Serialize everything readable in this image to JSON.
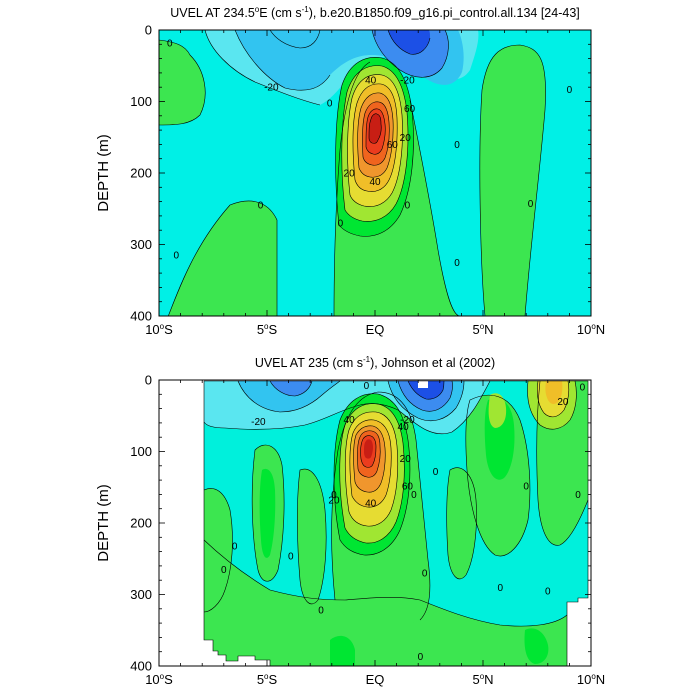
{
  "colors": {
    "c_neg40": "#1c50e6",
    "c_neg30": "#3c8cf0",
    "c_neg20": "#32c4f0",
    "c_neg10": "#5ae6f0",
    "c_0": "#00f0dc",
    "c_pos0": "#3ce650",
    "c_10": "#00e632",
    "c_20": "#a0e632",
    "c_30": "#e6dc32",
    "c_40": "#f0be28",
    "c_50": "#f0962d",
    "c_60": "#f0641e",
    "c_70": "#eb3c1e",
    "c_80": "#c81e14",
    "background_main": "#00f0e6"
  },
  "chart_data": [
    {
      "type": "heatmap",
      "title_main": "UVEL AT 234.5",
      "title_sup": "o",
      "title_mid": "E (cm s",
      "title_exp": "-1",
      "title_tail": "), b.e20.B1850.f09_g16.pi_control.all.134 [24-43]",
      "ylabel": "DEPTH (m)",
      "xlim": [
        -10,
        10
      ],
      "ylim": [
        400,
        0
      ],
      "x_ticks": [
        {
          "value": -10,
          "num": "10",
          "sup": "o",
          "suf": "S"
        },
        {
          "value": -5,
          "num": "5",
          "sup": "o",
          "suf": "S"
        },
        {
          "value": 0,
          "num": "EQ",
          "sup": "",
          "suf": ""
        },
        {
          "value": 5,
          "num": "5",
          "sup": "o",
          "suf": "N"
        },
        {
          "value": 10,
          "num": "10",
          "sup": "o",
          "suf": "N"
        }
      ],
      "y_ticks": [
        0,
        100,
        200,
        300,
        400
      ],
      "contour_interval": 10,
      "contour_labels": [
        {
          "text": "0",
          "lat": -9.5,
          "depth": 18
        },
        {
          "text": "-20",
          "lat": -4.8,
          "depth": 80
        },
        {
          "text": "0",
          "lat": -2.1,
          "depth": 102
        },
        {
          "text": "40",
          "lat": -0.2,
          "depth": 70
        },
        {
          "text": "-20",
          "lat": 1.5,
          "depth": 70
        },
        {
          "text": "60",
          "lat": 1.6,
          "depth": 110
        },
        {
          "text": "20",
          "lat": 1.4,
          "depth": 150
        },
        {
          "text": "60",
          "lat": 0.8,
          "depth": 160
        },
        {
          "text": "20",
          "lat": -1.2,
          "depth": 200
        },
        {
          "text": "40",
          "lat": 0.0,
          "depth": 212
        },
        {
          "text": "0",
          "lat": -1.6,
          "depth": 270
        },
        {
          "text": "0",
          "lat": -5.3,
          "depth": 245
        },
        {
          "text": "0",
          "lat": 1.5,
          "depth": 245
        },
        {
          "text": "0",
          "lat": 3.8,
          "depth": 160
        },
        {
          "text": "0",
          "lat": 3.8,
          "depth": 325
        },
        {
          "text": "0",
          "lat": 7.2,
          "depth": 243
        },
        {
          "text": "0",
          "lat": 9.0,
          "depth": 83
        },
        {
          "text": "0",
          "lat": -9.2,
          "depth": 315
        }
      ]
    },
    {
      "type": "heatmap",
      "title_main": "UVEL AT 235 (cm s",
      "title_exp": "-1",
      "title_tail": "), Johnson et al (2002)",
      "ylabel": "DEPTH (m)",
      "xlim": [
        -10,
        10
      ],
      "ylim": [
        400,
        0
      ],
      "x_ticks": [
        {
          "value": -10,
          "num": "10",
          "sup": "o",
          "suf": "S"
        },
        {
          "value": -5,
          "num": "5",
          "sup": "o",
          "suf": "S"
        },
        {
          "value": 0,
          "num": "EQ",
          "sup": "",
          "suf": ""
        },
        {
          "value": 5,
          "num": "5",
          "sup": "o",
          "suf": "N"
        },
        {
          "value": 10,
          "num": "10",
          "sup": "o",
          "suf": "N"
        }
      ],
      "y_ticks": [
        0,
        100,
        200,
        300,
        400
      ],
      "contour_interval": 10,
      "contour_labels": [
        {
          "text": "-20",
          "lat": -5.4,
          "depth": 58
        },
        {
          "text": "0",
          "lat": -0.4,
          "depth": 8
        },
        {
          "text": "40",
          "lat": -1.2,
          "depth": 55
        },
        {
          "text": "-20",
          "lat": 1.5,
          "depth": 55
        },
        {
          "text": "40",
          "lat": 1.3,
          "depth": 65
        },
        {
          "text": "20",
          "lat": 1.4,
          "depth": 110
        },
        {
          "text": "60",
          "lat": 1.5,
          "depth": 148
        },
        {
          "text": "20",
          "lat": -1.9,
          "depth": 168
        },
        {
          "text": "40",
          "lat": -0.2,
          "depth": 172
        },
        {
          "text": "0",
          "lat": -1.9,
          "depth": 160
        },
        {
          "text": "0",
          "lat": 1.8,
          "depth": 160
        },
        {
          "text": "0",
          "lat": 2.8,
          "depth": 128
        },
        {
          "text": "0",
          "lat": 7.0,
          "depth": 148
        },
        {
          "text": "0",
          "lat": 9.4,
          "depth": 160
        },
        {
          "text": "20",
          "lat": 8.7,
          "depth": 30
        },
        {
          "text": "0",
          "lat": 9.6,
          "depth": 10
        },
        {
          "text": "0",
          "lat": -6.5,
          "depth": 232
        },
        {
          "text": "0",
          "lat": -3.9,
          "depth": 246
        },
        {
          "text": "0",
          "lat": -7.0,
          "depth": 265
        },
        {
          "text": "0",
          "lat": -2.5,
          "depth": 322
        },
        {
          "text": "0",
          "lat": 2.3,
          "depth": 270
        },
        {
          "text": "0",
          "lat": 5.8,
          "depth": 290
        },
        {
          "text": "0",
          "lat": 8.0,
          "depth": 295
        },
        {
          "text": "0",
          "lat": 2.1,
          "depth": 387
        }
      ]
    }
  ]
}
